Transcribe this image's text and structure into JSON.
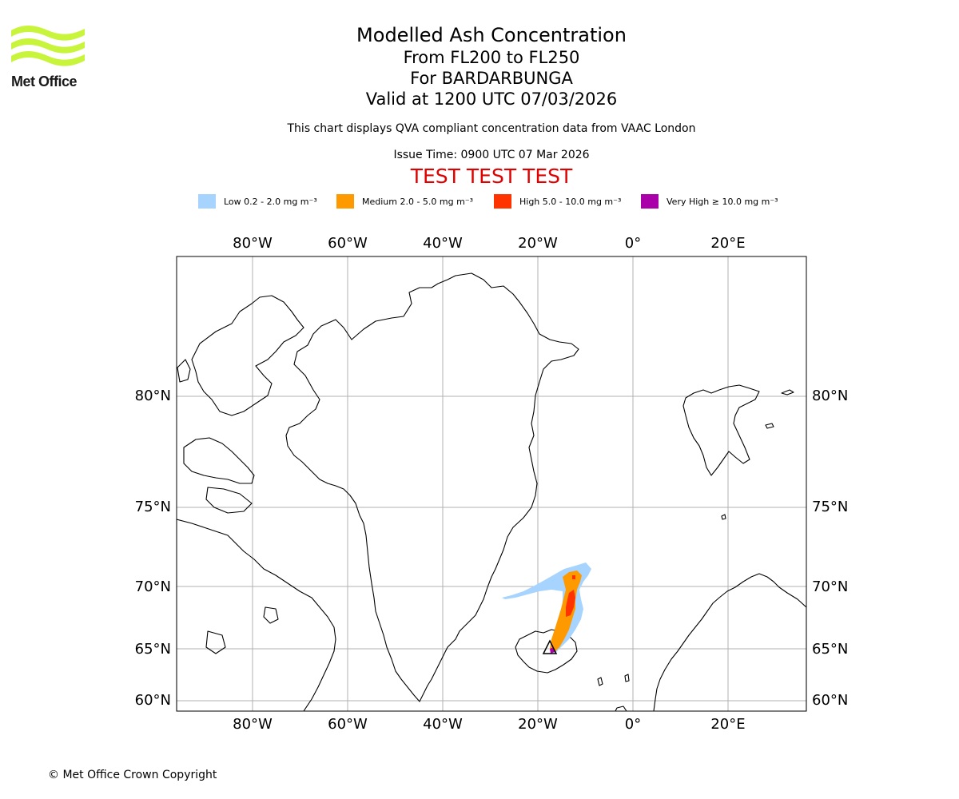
{
  "header": {
    "logo_text": "Met Office",
    "title": "Modelled Ash Concentration",
    "flight_levels": "From FL200 to FL250",
    "volcano": "For BARDARBUNGA",
    "valid_time": "Valid at 1200 UTC 07/03/2026",
    "compliance_note": "This chart displays QVA compliant concentration data from VAAC London",
    "issue_time": "Issue Time: 0900 UTC 07 Mar 2026",
    "test_banner": "TEST TEST TEST"
  },
  "legend": [
    {
      "label": "Low 0.2 - 2.0 mg m⁻³",
      "color": "#a6d4ff"
    },
    {
      "label": "Medium 2.0 - 5.0 mg m⁻³",
      "color": "#ff9900"
    },
    {
      "label": "High 5.0 - 10.0 mg m⁻³",
      "color": "#ff3300"
    },
    {
      "label": "Very High  ≥  10.0 mg m⁻³",
      "color": "#aa00aa"
    }
  ],
  "map": {
    "longitude_labels": [
      "80°W",
      "60°W",
      "40°W",
      "20°W",
      "0°",
      "20°E"
    ],
    "latitude_labels": [
      "80°N",
      "75°N",
      "70°N",
      "65°N",
      "60°N"
    ]
  },
  "footer": {
    "copyright": "© Met Office Crown Copyright"
  }
}
